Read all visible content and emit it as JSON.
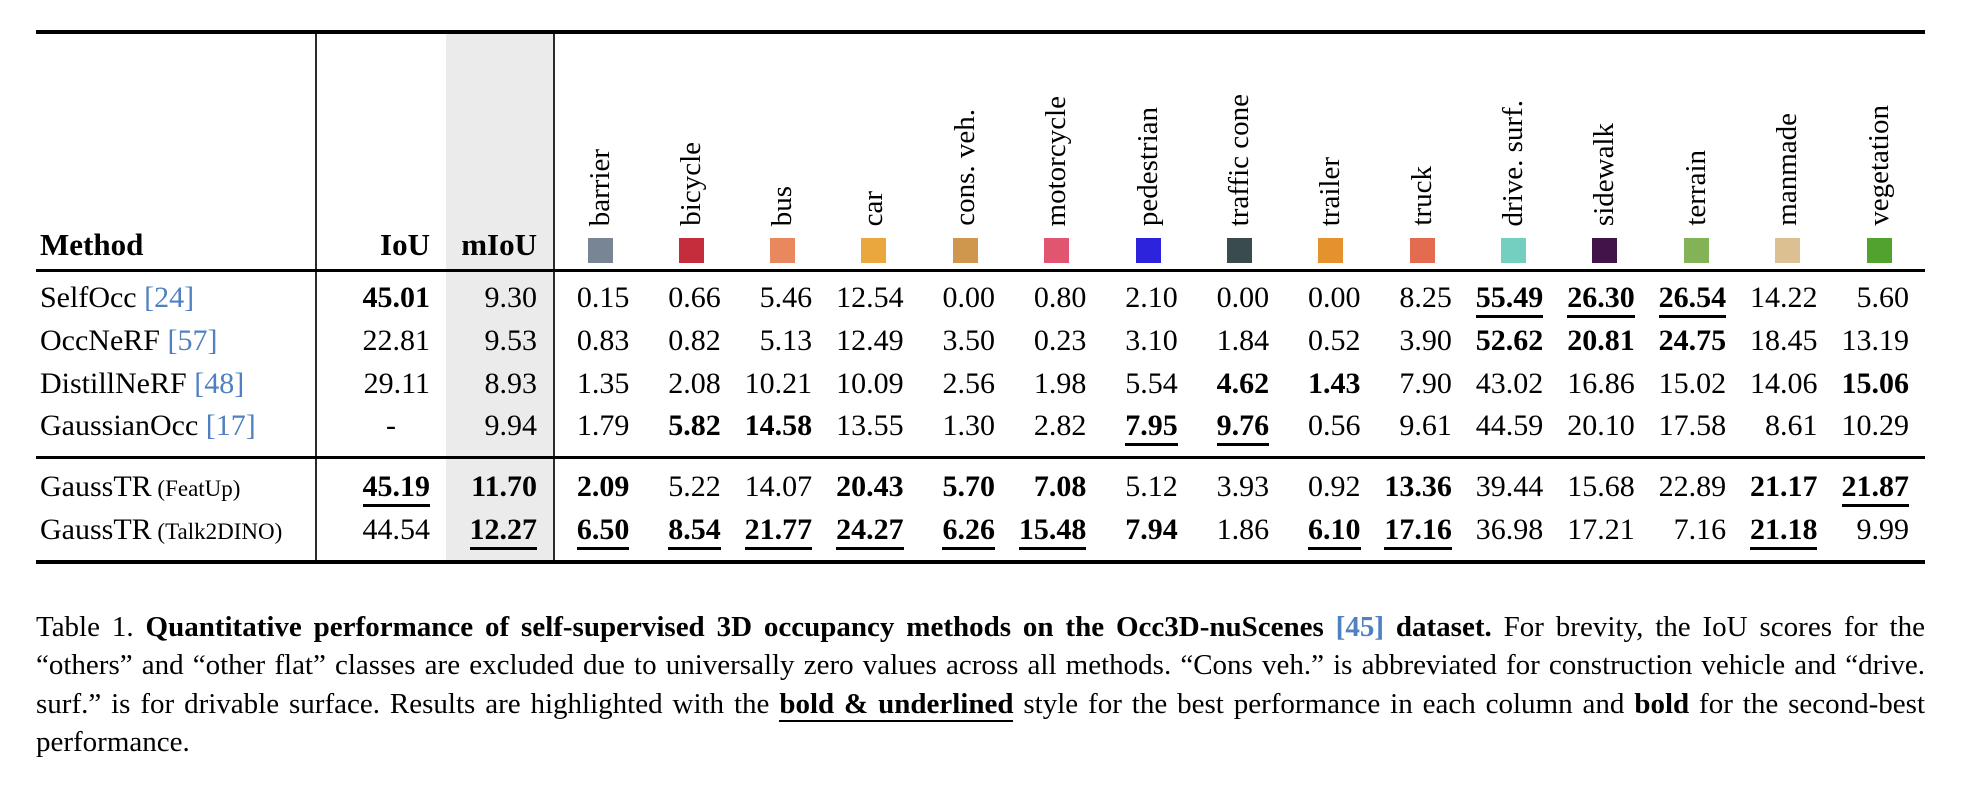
{
  "page": {
    "background": "#ffffff",
    "link_color": "#5080c0",
    "miou_band_color": "#ebebeb"
  },
  "table": {
    "headers": {
      "method": "Method",
      "iou": "IoU",
      "miou": "mIoU"
    },
    "classes": [
      {
        "label": "barrier",
        "color": "#778595"
      },
      {
        "label": "bicycle",
        "color": "#c52d3d"
      },
      {
        "label": "bus",
        "color": "#e9885f"
      },
      {
        "label": "car",
        "color": "#eaa73e"
      },
      {
        "label": "cons. veh.",
        "color": "#cf974d"
      },
      {
        "label": "motorcycle",
        "color": "#e15570"
      },
      {
        "label": "pedestrian",
        "color": "#2d23dd"
      },
      {
        "label": "traffic cone",
        "color": "#3a4b4d"
      },
      {
        "label": "trailer",
        "color": "#e3922d"
      },
      {
        "label": "truck",
        "color": "#e26b50"
      },
      {
        "label": "drive. surf.",
        "color": "#74cfc1"
      },
      {
        "label": "sidewalk",
        "color": "#421349"
      },
      {
        "label": "terrain",
        "color": "#83b356"
      },
      {
        "label": "manmade",
        "color": "#dcc091"
      },
      {
        "label": "vegetation",
        "color": "#4fa32e"
      }
    ],
    "groups": [
      {
        "rows": [
          {
            "method": "SelfOcc",
            "variant": "",
            "cite": "[24]",
            "iou": "45.01",
            "iou_s": "b",
            "miou": "9.30",
            "miou_s": "",
            "values": [
              "0.15",
              "0.66",
              "5.46",
              "12.54",
              "0.00",
              "0.80",
              "2.10",
              "0.00",
              "0.00",
              "8.25",
              "55.49",
              "26.30",
              "26.54",
              "14.22",
              "5.60"
            ],
            "styles": [
              "",
              "",
              "",
              "",
              "",
              "",
              "",
              "",
              "",
              "",
              "bu",
              "bu",
              "bu",
              "",
              ""
            ]
          },
          {
            "method": "OccNeRF",
            "variant": "",
            "cite": "[57]",
            "iou": "22.81",
            "iou_s": "",
            "miou": "9.53",
            "miou_s": "",
            "values": [
              "0.83",
              "0.82",
              "5.13",
              "12.49",
              "3.50",
              "0.23",
              "3.10",
              "1.84",
              "0.52",
              "3.90",
              "52.62",
              "20.81",
              "24.75",
              "18.45",
              "13.19"
            ],
            "styles": [
              "",
              "",
              "",
              "",
              "",
              "",
              "",
              "",
              "",
              "",
              "b",
              "b",
              "b",
              "",
              ""
            ]
          },
          {
            "method": "DistillNeRF",
            "variant": "",
            "cite": "[48]",
            "iou": "29.11",
            "iou_s": "",
            "miou": "8.93",
            "miou_s": "",
            "values": [
              "1.35",
              "2.08",
              "10.21",
              "10.09",
              "2.56",
              "1.98",
              "5.54",
              "4.62",
              "1.43",
              "7.90",
              "43.02",
              "16.86",
              "15.02",
              "14.06",
              "15.06"
            ],
            "styles": [
              "",
              "",
              "",
              "",
              "",
              "",
              "",
              "b",
              "b",
              "",
              "",
              "",
              "",
              "",
              "b"
            ]
          },
          {
            "method": "GaussianOcc",
            "variant": "",
            "cite": "[17]",
            "iou": "-",
            "iou_s": "",
            "miou": "9.94",
            "miou_s": "",
            "values": [
              "1.79",
              "5.82",
              "14.58",
              "13.55",
              "1.30",
              "2.82",
              "7.95",
              "9.76",
              "0.56",
              "9.61",
              "44.59",
              "20.10",
              "17.58",
              "8.61",
              "10.29"
            ],
            "styles": [
              "",
              "b",
              "b",
              "",
              "",
              "",
              "bu",
              "bu",
              "",
              "",
              "",
              "",
              "",
              "",
              ""
            ]
          }
        ]
      },
      {
        "rows": [
          {
            "method": "GaussTR",
            "variant": "(FeatUp)",
            "cite": "",
            "iou": "45.19",
            "iou_s": "bu",
            "miou": "11.70",
            "miou_s": "b",
            "values": [
              "2.09",
              "5.22",
              "14.07",
              "20.43",
              "5.70",
              "7.08",
              "5.12",
              "3.93",
              "0.92",
              "13.36",
              "39.44",
              "15.68",
              "22.89",
              "21.17",
              "21.87"
            ],
            "styles": [
              "b",
              "",
              "",
              "b",
              "b",
              "b",
              "",
              "",
              "",
              "b",
              "",
              "",
              "",
              "b",
              "bu"
            ]
          },
          {
            "method": "GaussTR",
            "variant": "(Talk2DINO)",
            "cite": "",
            "iou": "44.54",
            "iou_s": "",
            "miou": "12.27",
            "miou_s": "bu",
            "values": [
              "6.50",
              "8.54",
              "21.77",
              "24.27",
              "6.26",
              "15.48",
              "7.94",
              "1.86",
              "6.10",
              "17.16",
              "36.98",
              "17.21",
              "7.16",
              "21.18",
              "9.99"
            ],
            "styles": [
              "bu",
              "bu",
              "bu",
              "bu",
              "bu",
              "bu",
              "b",
              "",
              "bu",
              "bu",
              "",
              "",
              "",
              "bu",
              ""
            ]
          }
        ]
      }
    ]
  },
  "caption": {
    "segments": [
      {
        "t": "Table 1.  ",
        "s": ""
      },
      {
        "t": "Quantitative performance of self-supervised 3D occupancy methods on the Occ3D-nuScenes ",
        "s": "b"
      },
      {
        "t": "[45]",
        "s": "bl"
      },
      {
        "t": " dataset.",
        "s": "b"
      },
      {
        "t": "  For brevity, the IoU scores for the “others” and “other flat” classes are excluded due to universally zero values across all methods.  “Cons veh.” is abbreviated for construction vehicle and “drive. surf.” is for drivable surface. Results are highlighted with the ",
        "s": ""
      },
      {
        "t": "bold & underlined",
        "s": "bu"
      },
      {
        "t": " style for the best performance in each column and ",
        "s": ""
      },
      {
        "t": "bold",
        "s": "b"
      },
      {
        "t": " for the second-best performance.",
        "s": ""
      }
    ]
  }
}
